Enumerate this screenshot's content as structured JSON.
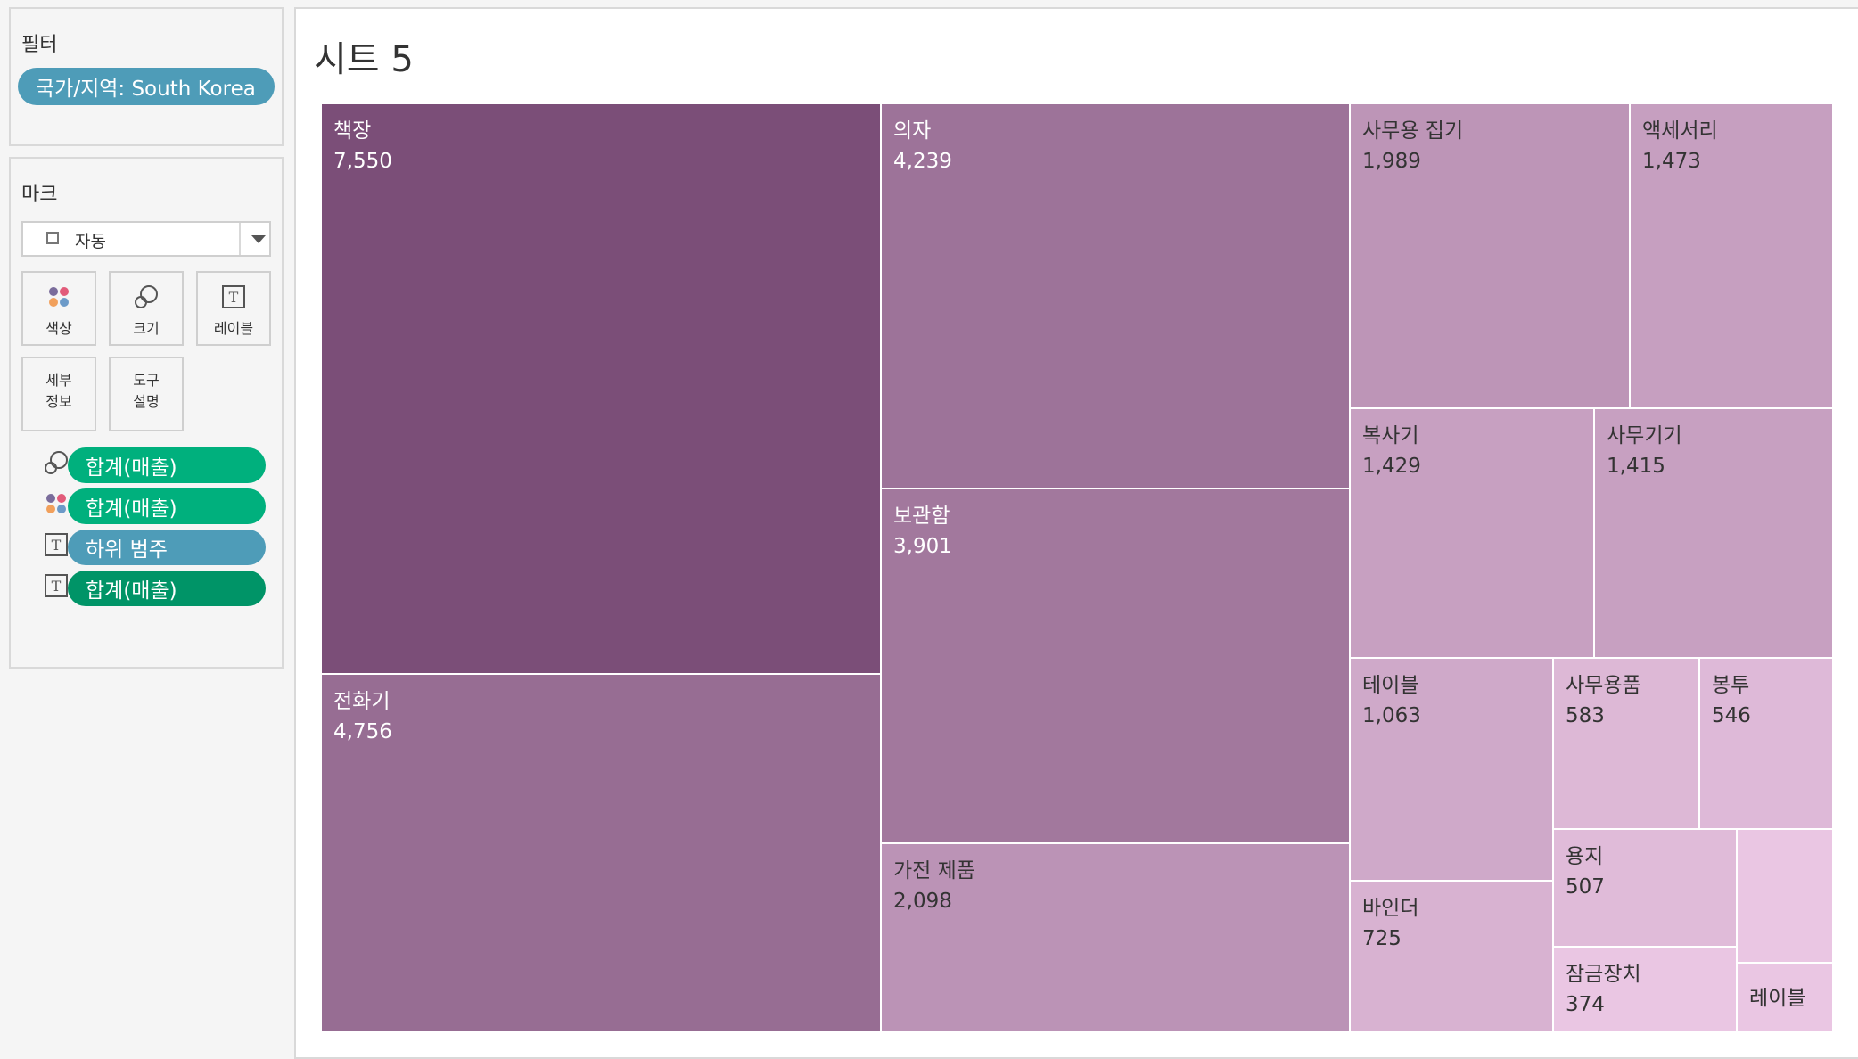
{
  "filters": {
    "title": "필터",
    "pill": "국가/지역: South Korea"
  },
  "marks": {
    "title": "마크",
    "type_selector": "자동",
    "buttons": {
      "color": "색상",
      "size": "크기",
      "label": "레이블",
      "detail_1": "세부",
      "detail_2": "정보",
      "tooltip_1": "도구",
      "tooltip_2": "설명"
    },
    "encodings": [
      {
        "icon": "size-icon",
        "label": "합계(매출)",
        "color": "#00b07d"
      },
      {
        "icon": "color-icon",
        "label": "합계(매출)",
        "color": "#00b07d"
      },
      {
        "icon": "text-icon",
        "label": "하위 범주",
        "color": "#4e9cb8"
      },
      {
        "icon": "text-icon",
        "label": "합계(매출)",
        "color": "#009467"
      }
    ]
  },
  "sheet": {
    "title": "시트 5"
  },
  "chart_data": {
    "type": "treemap",
    "size_measure": "합계(매출)",
    "color_measure": "합계(매출)",
    "label_dimension": "하위 범주",
    "items": [
      {
        "name": "책장",
        "value": 7550
      },
      {
        "name": "전화기",
        "value": 4756
      },
      {
        "name": "의자",
        "value": 4239
      },
      {
        "name": "보관함",
        "value": 3901
      },
      {
        "name": "가전 제품",
        "value": 2098
      },
      {
        "name": "사무용 집기",
        "value": 1989
      },
      {
        "name": "액세서리",
        "value": 1473
      },
      {
        "name": "복사기",
        "value": 1429
      },
      {
        "name": "사무기기",
        "value": 1415
      },
      {
        "name": "테이블",
        "value": 1063
      },
      {
        "name": "바인더",
        "value": 725
      },
      {
        "name": "사무용품",
        "value": 583
      },
      {
        "name": "봉투",
        "value": 546
      },
      {
        "name": "용지",
        "value": 507
      },
      {
        "name": "잠금장치",
        "value": 374
      },
      {
        "name": "레이블",
        "value": null,
        "value_label_shown": false
      },
      {
        "name": "",
        "value": null,
        "label_shown": false
      }
    ],
    "color_range": [
      "#eac6e3",
      "#7b4e78"
    ]
  }
}
